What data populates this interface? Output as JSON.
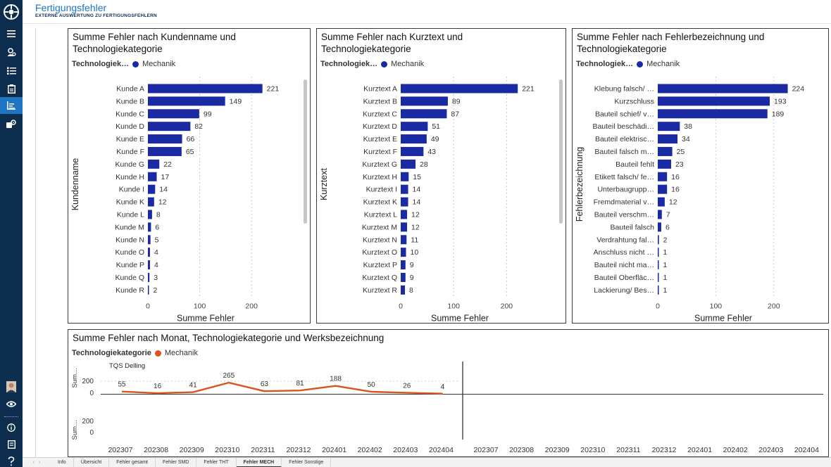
{
  "header": {
    "title": "Fertigungsfehler",
    "subtitle": "EXTERNE AUSWERTUNG ZU FERTIGUNGSFEHLERN"
  },
  "nav_icons": [
    "menu-icon",
    "user-search-icon",
    "checklist-icon",
    "clipboard-icon",
    "report-chart-icon",
    "settings-gear-icon",
    "avatar",
    "eye-icon",
    "info-icon",
    "book-icon",
    "help-icon"
  ],
  "colors": {
    "nav_bg": "#0c2d4d",
    "accent": "#1f75c4",
    "bar": "#1a2aa3",
    "line": "#d9541e"
  },
  "legend": {
    "title_short": "Technologiek…",
    "title_full": "Technologiekategorie",
    "series": "Mechanik"
  },
  "chart_data": [
    {
      "type": "bar",
      "orientation": "horizontal",
      "title": "Summe Fehler nach Kundenname und Technologiekategorie",
      "ylabel": "Kundenname",
      "xlabel": "Summe Fehler",
      "xlim": [
        0,
        250
      ],
      "xticks": [
        0,
        100,
        200
      ],
      "categories": [
        "Kunde A",
        "Kunde B",
        "Kunde C",
        "Kunde D",
        "Kunde E",
        "Kunde F",
        "Kunde G",
        "Kunde H",
        "Kunde I",
        "Kunde K",
        "Kunde L",
        "Kunde M",
        "Kunde N",
        "Kunde O",
        "Kunde P",
        "Kunde Q",
        "Kunde R"
      ],
      "series": [
        {
          "name": "Mechanik",
          "values": [
            221,
            149,
            99,
            82,
            66,
            65,
            22,
            17,
            14,
            12,
            8,
            6,
            5,
            4,
            4,
            3,
            2
          ]
        }
      ],
      "grid": true
    },
    {
      "type": "bar",
      "orientation": "horizontal",
      "title": "Summe Fehler nach Kurztext und Technologiekategorie",
      "ylabel": "Kurztext",
      "xlabel": "Summe Fehler",
      "xlim": [
        0,
        250
      ],
      "xticks": [
        0,
        100,
        200
      ],
      "categories": [
        "Kurztext A",
        "Kurztext B",
        "Kurztext C",
        "Kurztext D",
        "Kurztext E",
        "Kurztext F",
        "Kurztext G",
        "Kurztext H",
        "Kurztext I",
        "Kurztext K",
        "Kurztext L",
        "Kurztext M",
        "Kurztext N",
        "Kurztext O",
        "Kurztext P",
        "Kurztext Q",
        "Kurztext R"
      ],
      "series": [
        {
          "name": "Mechanik",
          "values": [
            221,
            89,
            87,
            51,
            49,
            43,
            28,
            15,
            14,
            14,
            12,
            12,
            11,
            10,
            9,
            9,
            8
          ]
        }
      ],
      "grid": true
    },
    {
      "type": "bar",
      "orientation": "horizontal",
      "title": "Summe Fehler nach Fehlerbezeichnung und Technologiekategorie",
      "ylabel": "Fehlerbezeichnung",
      "xlabel": "Summe Fehler",
      "xlim": [
        0,
        250
      ],
      "xticks": [
        0,
        100,
        200
      ],
      "categories": [
        "Klebung falsch/ …",
        "Kurzschluss",
        "Bauteil schief/ v…",
        "Bauteil beschädi…",
        "Bauteil elektrisc…",
        "Bauteil falsch m…",
        "Bauteil fehlt",
        "Etikett falsch/ fe…",
        "Unterbaugrupp…",
        "Fremdmaterial v…",
        "Bauteil verschm…",
        "Bauteil falsch",
        "Verdrahtung fal…",
        "Anschluss nicht …",
        "Bauteil nicht ma…",
        "Bauteil Oberfläc…",
        "Lackierung/ Bes…"
      ],
      "series": [
        {
          "name": "Mechanik",
          "values": [
            224,
            193,
            189,
            38,
            34,
            25,
            23,
            16,
            16,
            12,
            7,
            6,
            2,
            1,
            1,
            1,
            1
          ]
        }
      ],
      "grid": true
    },
    {
      "type": "line",
      "title": "Summe Fehler nach Monat, Technologiekategorie und Werksbezeichnung",
      "panel_label": "TQS Delling",
      "row_labels": [
        "Sum…",
        "Sum…"
      ],
      "yticks": [
        0,
        200
      ],
      "x": [
        "202307",
        "202308",
        "202309",
        "202310",
        "202311",
        "202312",
        "202401",
        "202402",
        "202403",
        "202404"
      ],
      "series": [
        {
          "name": "Mechanik",
          "values": [
            55,
            16,
            41,
            265,
            63,
            81,
            188,
            50,
            26,
            4
          ]
        }
      ],
      "x_second_panel": [
        "202307",
        "202308",
        "202309",
        "202310",
        "202311",
        "202312",
        "202401",
        "202402",
        "202403",
        "202404"
      ]
    }
  ],
  "tabs": {
    "items": [
      "Info",
      "Übersicht",
      "Fehler gesamt",
      "Fehler SMD",
      "Fehler THT",
      "Fehler MECH",
      "Fehler Sonstige"
    ],
    "active": "Fehler MECH",
    "prev": "‹",
    "next": "›"
  }
}
